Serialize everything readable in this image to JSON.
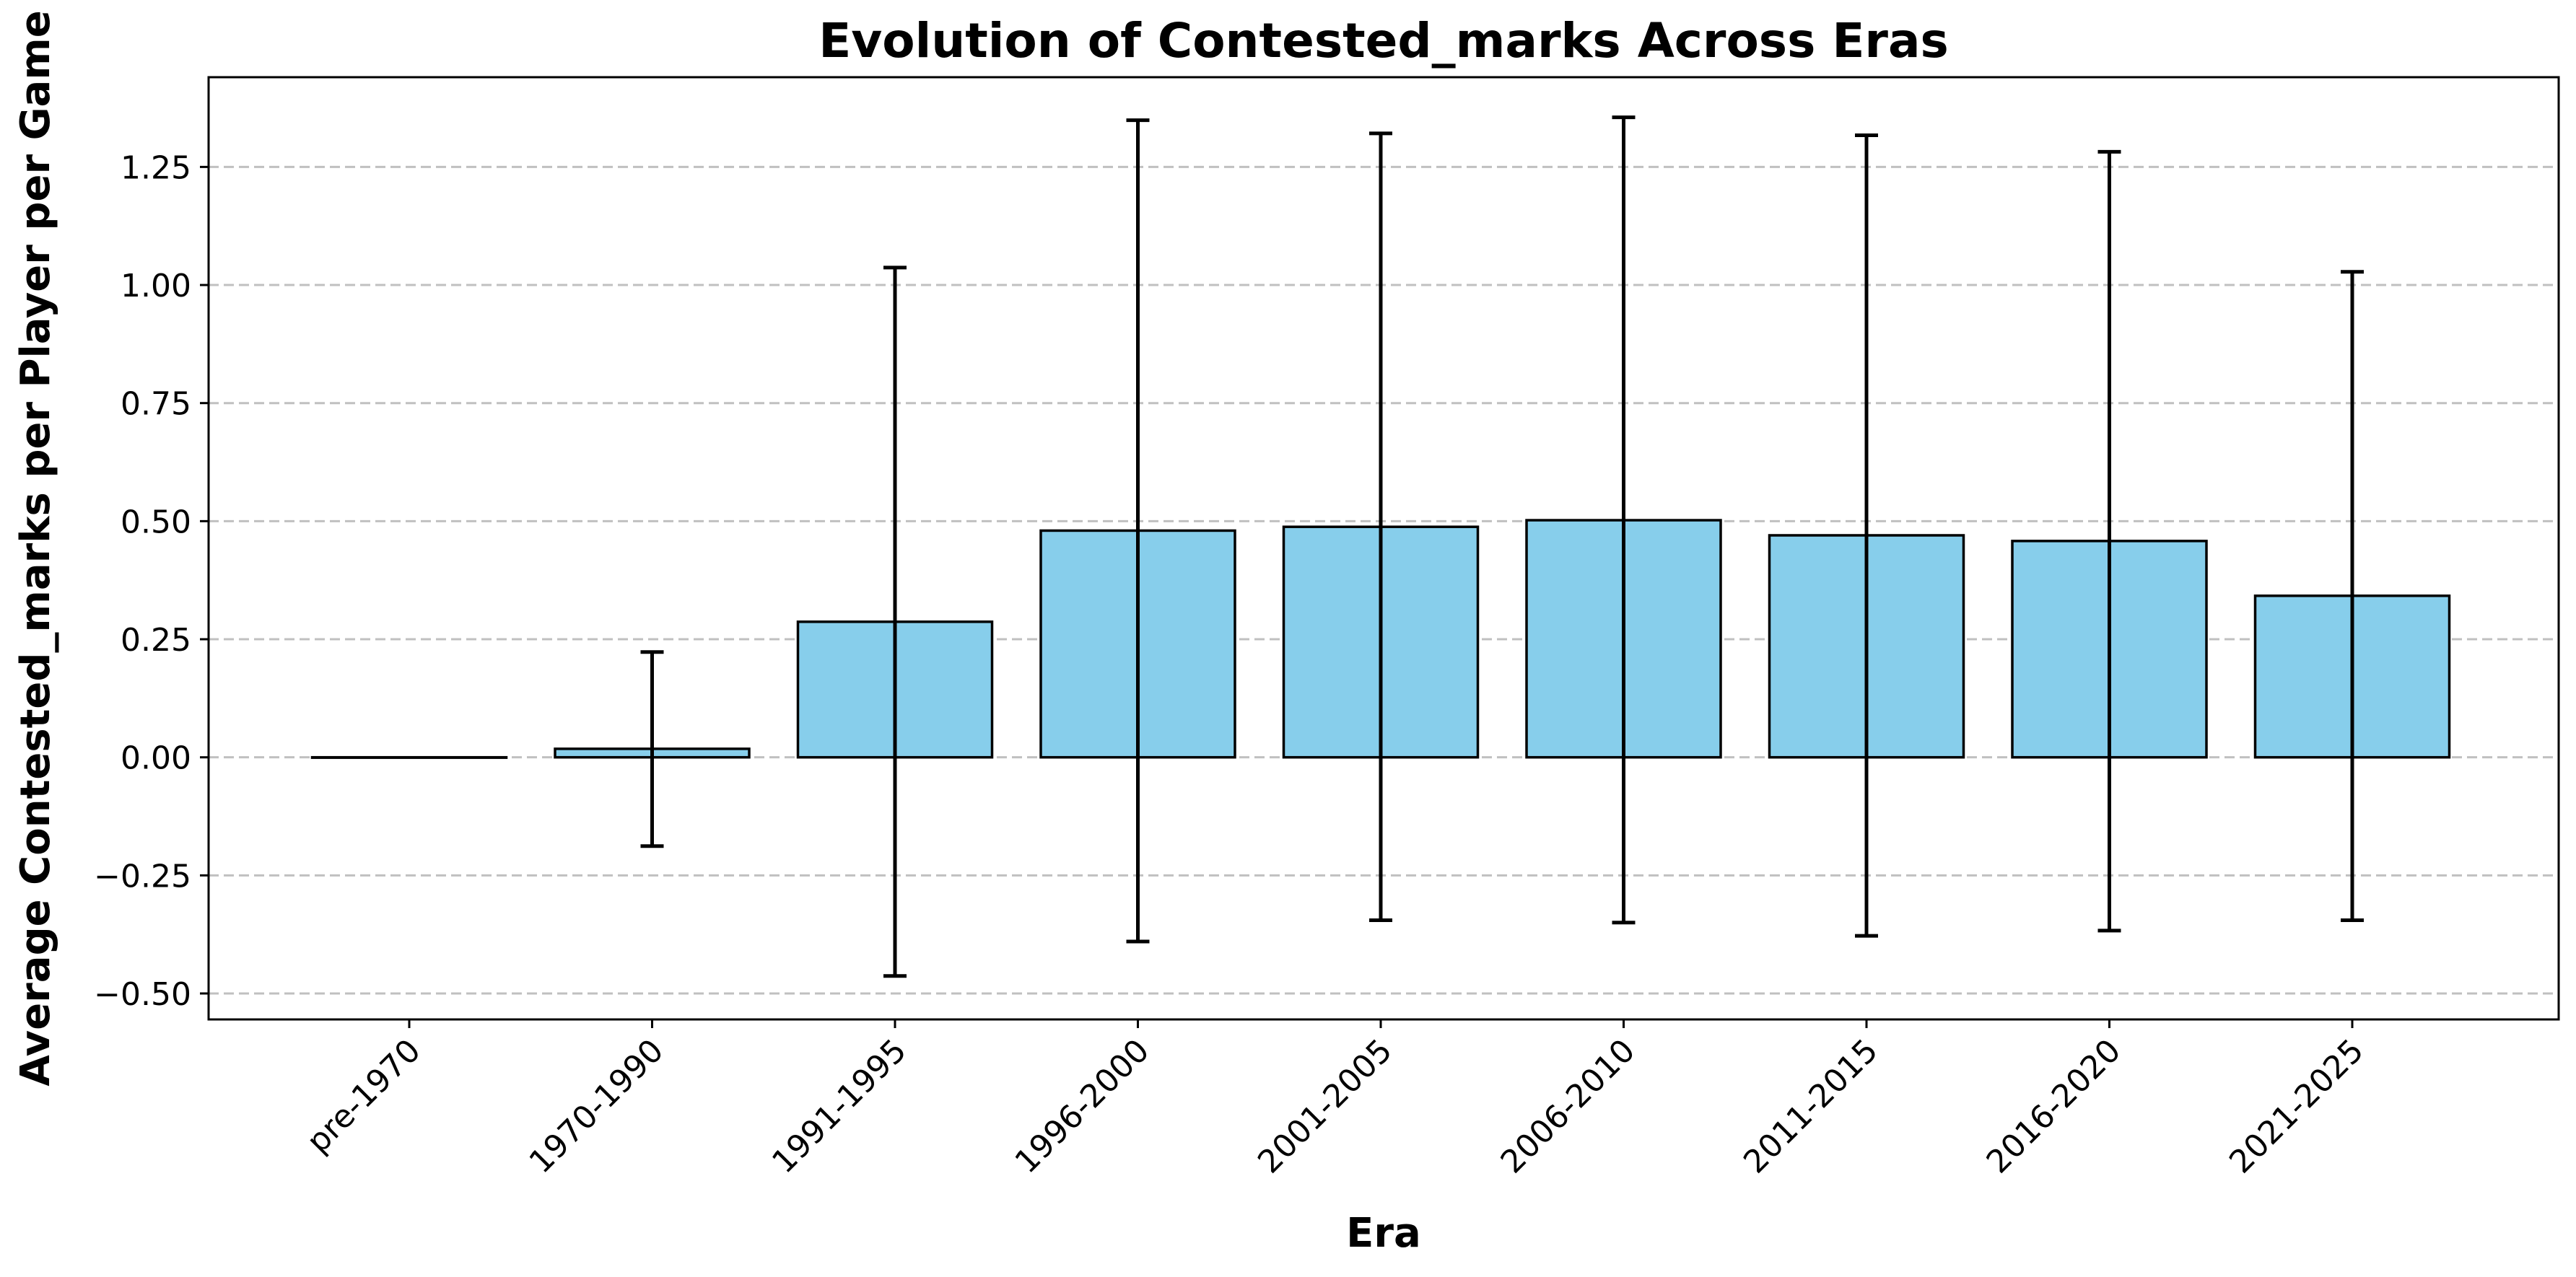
{
  "chart_data": {
    "type": "bar",
    "title": "Evolution of Contested_marks Across Eras",
    "xlabel": "Era",
    "ylabel": "Average Contested_marks per Player per Game",
    "categories": [
      "pre-1970",
      "1970-1990",
      "1991-1995",
      "1996-2000",
      "2001-2005",
      "2006-2010",
      "2011-2015",
      "2016-2020",
      "2021-2025"
    ],
    "values": [
      0.0,
      0.018,
      0.287,
      0.48,
      0.488,
      0.502,
      0.47,
      0.458,
      0.342
    ],
    "error_low": [
      0.0,
      -0.188,
      -0.463,
      -0.39,
      -0.345,
      -0.35,
      -0.378,
      -0.367,
      -0.345
    ],
    "error_high": [
      0.0,
      0.223,
      1.037,
      1.349,
      1.321,
      1.355,
      1.317,
      1.282,
      1.028
    ],
    "ylim": [
      -0.555,
      1.44
    ],
    "yticks": [
      -0.5,
      -0.25,
      0.0,
      0.25,
      0.5,
      0.75,
      1.0,
      1.25
    ],
    "ytick_labels": [
      "−0.50",
      "−0.25",
      "0.00",
      "0.25",
      "0.50",
      "0.75",
      "1.00",
      "1.25"
    ],
    "grid": "y-dashed",
    "bar_color": "#87ceeb",
    "edge_color": "#000000"
  }
}
